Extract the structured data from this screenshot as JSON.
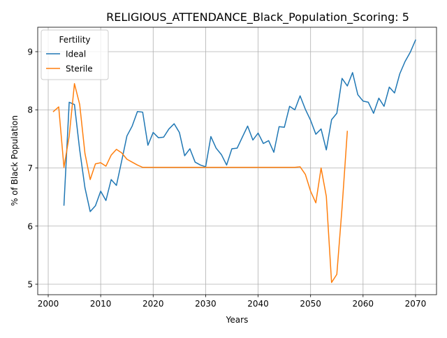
{
  "chart_data": {
    "type": "line",
    "title": "RELIGIOUS_ATTENDANCE_Black_Population_Scoring: 5",
    "xlabel": "Years",
    "ylabel": "% of Black Population",
    "xlim": [
      1998,
      2074
    ],
    "ylim": [
      4.82,
      9.42
    ],
    "xticks": [
      2000,
      2010,
      2020,
      2030,
      2040,
      2050,
      2060,
      2070
    ],
    "yticks": [
      5,
      6,
      7,
      8,
      9
    ],
    "grid": true,
    "legend": {
      "title": "Fertility",
      "placement": "top-left"
    },
    "series": [
      {
        "name": "Ideal",
        "color": "#1f77b4",
        "x": [
          2003,
          2004,
          2005,
          2006,
          2007,
          2008,
          2009,
          2010,
          2011,
          2012,
          2013,
          2014,
          2015,
          2016,
          2017,
          2018,
          2019,
          2020,
          2021,
          2022,
          2023,
          2024,
          2025,
          2026,
          2027,
          2028,
          2029,
          2030,
          2031,
          2032,
          2033,
          2034,
          2035,
          2036,
          2037,
          2038,
          2039,
          2040,
          2041,
          2042,
          2043,
          2044,
          2045,
          2046,
          2047,
          2048,
          2049,
          2050,
          2051,
          2052,
          2053,
          2054,
          2055,
          2056,
          2057,
          2058,
          2059,
          2060,
          2061,
          2062,
          2063,
          2064,
          2065,
          2066,
          2067,
          2068,
          2069,
          2070
        ],
        "values": [
          6.36,
          8.13,
          8.09,
          7.31,
          6.66,
          6.25,
          6.35,
          6.6,
          6.44,
          6.8,
          6.7,
          7.12,
          7.55,
          7.72,
          7.97,
          7.96,
          7.39,
          7.61,
          7.52,
          7.53,
          7.67,
          7.76,
          7.61,
          7.21,
          7.33,
          7.1,
          7.05,
          7.02,
          7.54,
          7.34,
          7.23,
          7.05,
          7.33,
          7.34,
          7.53,
          7.72,
          7.48,
          7.6,
          7.42,
          7.47,
          7.27,
          7.71,
          7.7,
          8.06,
          8.0,
          8.24,
          8.01,
          7.82,
          7.58,
          7.67,
          7.31,
          7.83,
          7.94,
          8.54,
          8.41,
          8.64,
          8.26,
          8.15,
          8.13,
          7.94,
          8.2,
          8.06,
          8.39,
          8.29,
          8.62,
          8.83,
          8.99,
          9.2
        ]
      },
      {
        "name": "Sterile",
        "color": "#ff7f0e",
        "x": [
          2001,
          2002,
          2003,
          2004,
          2005,
          2006,
          2007,
          2008,
          2009,
          2010,
          2011,
          2012,
          2013,
          2014,
          2015,
          2016,
          2017,
          2018,
          2019,
          2020,
          2021,
          2022,
          2023,
          2024,
          2025,
          2026,
          2027,
          2028,
          2029,
          2030,
          2031,
          2032,
          2033,
          2034,
          2035,
          2036,
          2037,
          2038,
          2039,
          2040,
          2041,
          2042,
          2043,
          2044,
          2045,
          2046,
          2047,
          2048,
          2049,
          2050,
          2051,
          2052,
          2053,
          2054,
          2055,
          2056,
          2057
        ],
        "values": [
          7.97,
          8.05,
          7.01,
          7.55,
          8.45,
          8.09,
          7.25,
          6.8,
          7.07,
          7.09,
          7.03,
          7.22,
          7.32,
          7.26,
          7.15,
          7.1,
          7.05,
          7.01,
          7.01,
          7.01,
          7.01,
          7.01,
          7.01,
          7.01,
          7.01,
          7.01,
          7.01,
          7.01,
          7.01,
          7.01,
          7.01,
          7.01,
          7.01,
          7.01,
          7.01,
          7.01,
          7.01,
          7.01,
          7.01,
          7.01,
          7.01,
          7.01,
          7.01,
          7.01,
          7.01,
          7.01,
          7.01,
          7.02,
          6.89,
          6.6,
          6.4,
          7.0,
          6.51,
          5.03,
          5.17,
          6.32,
          7.63
        ]
      }
    ]
  }
}
